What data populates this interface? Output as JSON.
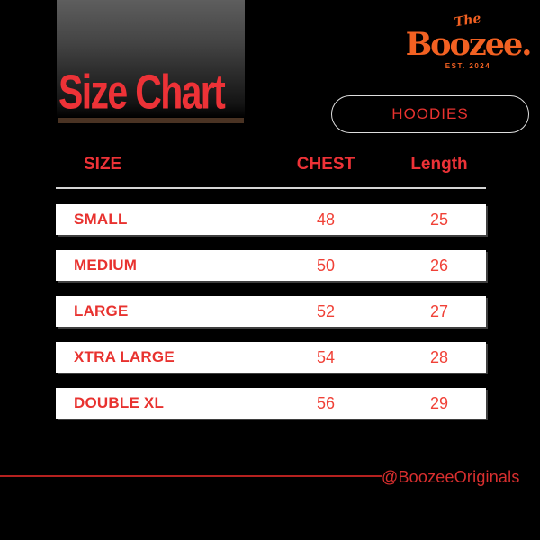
{
  "title": "Size Chart",
  "brand": {
    "the": "The",
    "name": "Boozee.",
    "est": "EST. 2024",
    "orange": "#f26122"
  },
  "category": {
    "label": "HOODIES"
  },
  "colors": {
    "background": "#000000",
    "accent_red": "#ed3237",
    "number_red": "#f04137",
    "footer_red": "#d92f2f",
    "footer_line_red": "#b5211f",
    "title_underline_brown": "#4a3323",
    "panel_gradient_top_gray": "#5e5e5e",
    "row_background": "#ffffff",
    "pill_border": "#dedede",
    "header_rule": "#d4d4d4"
  },
  "chart_data": {
    "type": "table",
    "title": "Size Chart",
    "subtitle": "HOODIES",
    "columns": [
      "SIZE",
      "CHEST",
      "Length"
    ],
    "rows": [
      [
        "SMALL",
        "48",
        "25"
      ],
      [
        "MEDIUM",
        "50",
        "26"
      ],
      [
        "LARGE",
        "52",
        "27"
      ],
      [
        "XTRA LARGE",
        "54",
        "28"
      ],
      [
        "DOUBLE XL",
        "56",
        "29"
      ]
    ]
  },
  "footer": {
    "handle": "@BoozeeOriginals"
  }
}
